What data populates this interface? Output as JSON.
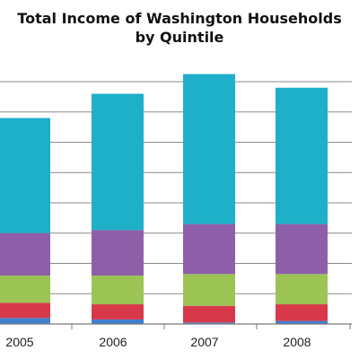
{
  "chart_data": {
    "type": "bar",
    "stacked": true,
    "title": [
      "Total Income of Washington Households",
      "by Quintile"
    ],
    "xlabel": "",
    "ylabel": "",
    "categories": [
      "2005",
      "2006",
      "2007",
      "2008"
    ],
    "ylim": [
      0,
      8
    ],
    "grid": true,
    "legend": "none",
    "series": [
      {
        "color": "#3f7fd0",
        "values": [
          0.2,
          0.15,
          0.05,
          0.1
        ]
      },
      {
        "color": "#d8394a",
        "values": [
          0.5,
          0.5,
          0.55,
          0.55
        ]
      },
      {
        "color": "#9bc454",
        "values": [
          0.9,
          0.95,
          1.05,
          1.0
        ]
      },
      {
        "color": "#8f5ea8",
        "values": [
          1.4,
          1.5,
          1.65,
          1.65
        ]
      },
      {
        "color": "#1eafc9",
        "values": [
          3.8,
          4.5,
          4.95,
          4.5
        ]
      }
    ]
  }
}
